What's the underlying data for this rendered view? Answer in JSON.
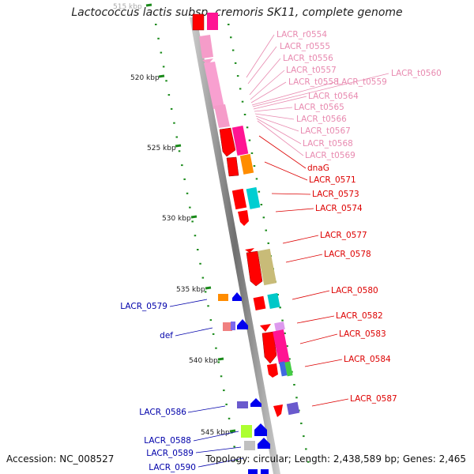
{
  "title": "Lactococcus lactis subsp. cremoris SK11, complete genome",
  "accession": "Accession: NC_008527",
  "topology": "Topology: circular; Length: 2,438,589 bp; Genes: 2,465",
  "ruler": [
    "515 kbp",
    "520 kbp",
    "525 kbp",
    "530 kbp",
    "535 kbp",
    "540 kbp",
    "545 kbp"
  ],
  "labels_pink": [
    "LACR_r0554",
    "LACR_r0555",
    "LACR_t0556",
    "LACR_t0557",
    "LACR_t0558",
    "LACR_t0559",
    "LACR_t0560",
    "LACR_t0564",
    "LACR_t0565",
    "LACR_t0566",
    "LACR_t0567",
    "LACR_t0568",
    "LACR_t0569"
  ],
  "labels_red": [
    "dnaG",
    "LACR_0571",
    "LACR_0573",
    "LACR_0574",
    "LACR_0577",
    "LACR_0578",
    "LACR_0580",
    "LACR_0582",
    "LACR_0583",
    "LACR_0584",
    "LACR_0587"
  ],
  "labels_blue": [
    "LACR_0579",
    "def",
    "LACR_0586",
    "LACR_0588",
    "LACR_0589",
    "LACR_0590"
  ],
  "colors": {
    "pink": "#e88ab0",
    "red": "#dd0000",
    "blue": "#0000aa",
    "axis": "#8a8a8a",
    "tick": "#1a8a1a"
  }
}
